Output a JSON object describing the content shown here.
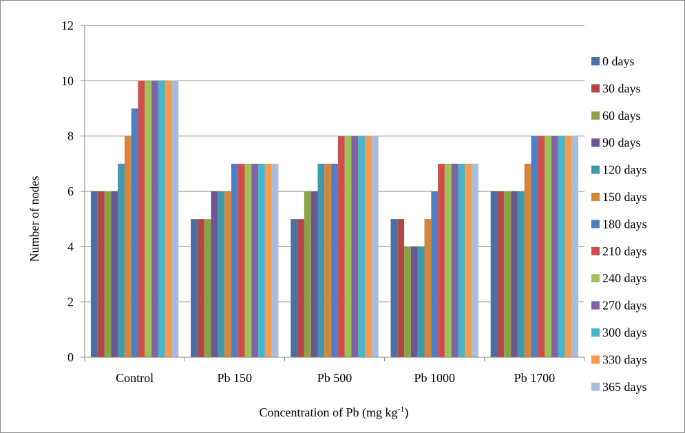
{
  "chart_data": {
    "type": "bar",
    "xlabel": "Concentration of Pb (mg kg",
    "xlabel_sup": "-1",
    "xlabel_close": ")",
    "ylabel": "Number of nodes",
    "ylim": [
      0,
      12
    ],
    "yticks": [
      0,
      2,
      4,
      6,
      8,
      10,
      12
    ],
    "grid": true,
    "legend": "right",
    "categories": [
      "Control",
      "Pb 150",
      "Pb 500",
      "Pb 1000",
      "Pb 1700"
    ],
    "series": [
      {
        "name": "0 days",
        "color": "#4a6fa5",
        "values": [
          6,
          5,
          5,
          5,
          6
        ]
      },
      {
        "name": "30 days",
        "color": "#b34745",
        "values": [
          6,
          5,
          5,
          5,
          6
        ]
      },
      {
        "name": "60 days",
        "color": "#8aa349",
        "values": [
          6,
          5,
          6,
          4,
          6
        ]
      },
      {
        "name": "90 days",
        "color": "#6e5791",
        "values": [
          6,
          6,
          6,
          4,
          6
        ]
      },
      {
        "name": "120 days",
        "color": "#3f98ab",
        "values": [
          7,
          6,
          7,
          4,
          6
        ]
      },
      {
        "name": "150 days",
        "color": "#d4873c",
        "values": [
          8,
          6,
          7,
          5,
          7
        ]
      },
      {
        "name": "180 days",
        "color": "#4c7fc5",
        "values": [
          9,
          7,
          7,
          6,
          8
        ]
      },
      {
        "name": "210 days",
        "color": "#cf4d4b",
        "values": [
          10,
          7,
          8,
          7,
          8
        ]
      },
      {
        "name": "240 days",
        "color": "#9dc256",
        "values": [
          10,
          7,
          8,
          7,
          8
        ]
      },
      {
        "name": "270 days",
        "color": "#8064a2",
        "values": [
          10,
          7,
          8,
          7,
          8
        ]
      },
      {
        "name": "300 days",
        "color": "#47b5cc",
        "values": [
          10,
          7,
          8,
          7,
          8
        ]
      },
      {
        "name": "330 days",
        "color": "#f79b4a",
        "values": [
          10,
          7,
          8,
          7,
          8
        ]
      },
      {
        "name": "365 days",
        "color": "#a9bcdc",
        "values": [
          10,
          7,
          8,
          7,
          8
        ]
      }
    ]
  }
}
